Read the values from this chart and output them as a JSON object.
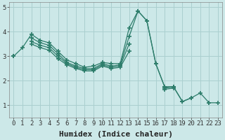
{
  "xlabel": "Humidex (Indice chaleur)",
  "x_values": [
    0,
    1,
    2,
    3,
    4,
    5,
    6,
    7,
    8,
    9,
    10,
    11,
    12,
    13,
    14,
    15,
    16,
    17,
    18,
    19,
    20,
    21,
    22,
    23
  ],
  "series": [
    {
      "y": [
        3.0,
        3.35,
        3.9,
        3.65,
        3.55,
        3.2,
        2.85,
        2.7,
        2.55,
        2.6,
        2.75,
        2.7,
        2.7,
        4.15,
        4.85,
        4.45,
        2.7,
        1.75,
        1.75,
        1.15,
        1.3,
        1.5,
        1.1,
        1.1
      ],
      "breaks": []
    },
    {
      "y": [
        3.0,
        null,
        3.75,
        3.55,
        3.45,
        3.1,
        2.75,
        2.6,
        2.5,
        2.5,
        2.7,
        2.6,
        2.65,
        3.8,
        4.85,
        4.45,
        2.7,
        1.75,
        1.75,
        1.15,
        1.3,
        null,
        1.1,
        null
      ],
      "breaks": []
    },
    {
      "y": [
        3.0,
        null,
        3.6,
        3.45,
        3.35,
        3.0,
        2.7,
        2.55,
        2.45,
        2.45,
        2.65,
        2.55,
        2.6,
        3.5,
        null,
        null,
        null,
        1.7,
        1.75,
        null,
        null,
        null,
        null,
        null
      ],
      "breaks": []
    },
    {
      "y": [
        3.0,
        null,
        3.5,
        3.35,
        3.25,
        2.9,
        2.65,
        2.5,
        2.4,
        2.4,
        2.6,
        2.5,
        2.55,
        3.2,
        null,
        null,
        null,
        1.65,
        1.7,
        null,
        null,
        null,
        null,
        null
      ],
      "breaks": []
    }
  ],
  "line_color": "#2d7d6b",
  "marker": "+",
  "markersize": 4,
  "linewidth": 0.9,
  "markeredgewidth": 1.2,
  "ylim": [
    0.5,
    5.2
  ],
  "yticks": [
    1,
    2,
    3,
    4,
    5
  ],
  "xticks": [
    0,
    1,
    2,
    3,
    4,
    5,
    6,
    7,
    8,
    9,
    10,
    11,
    12,
    13,
    14,
    15,
    16,
    17,
    18,
    19,
    20,
    21,
    22,
    23
  ],
  "bg_color": "#cce8e8",
  "grid_color_major": "#aacfcf",
  "grid_color_minor": "#c0dfdf",
  "tick_fontsize": 6.5,
  "label_fontsize": 8
}
